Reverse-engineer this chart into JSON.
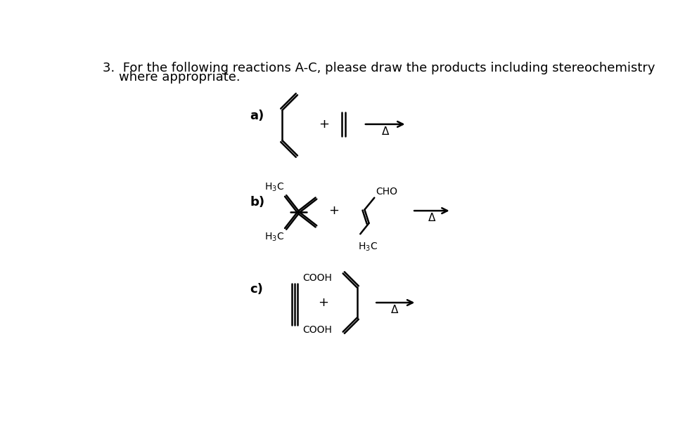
{
  "bg_color": "#ffffff",
  "text_color": "#000000",
  "line_color": "#000000",
  "title_line1": "3.  For the following reactions A-C, please draw the products including stereochemistry",
  "title_line2": "    where appropriate.",
  "label_a": "a)",
  "label_b": "b)",
  "label_c": "c)",
  "plus": "+",
  "delta": "Δ",
  "CHO": "CHO",
  "H3C": "H₃C",
  "COOH": "COOH",
  "font_size_title": 13,
  "font_size_label": 13,
  "font_size_small": 10
}
